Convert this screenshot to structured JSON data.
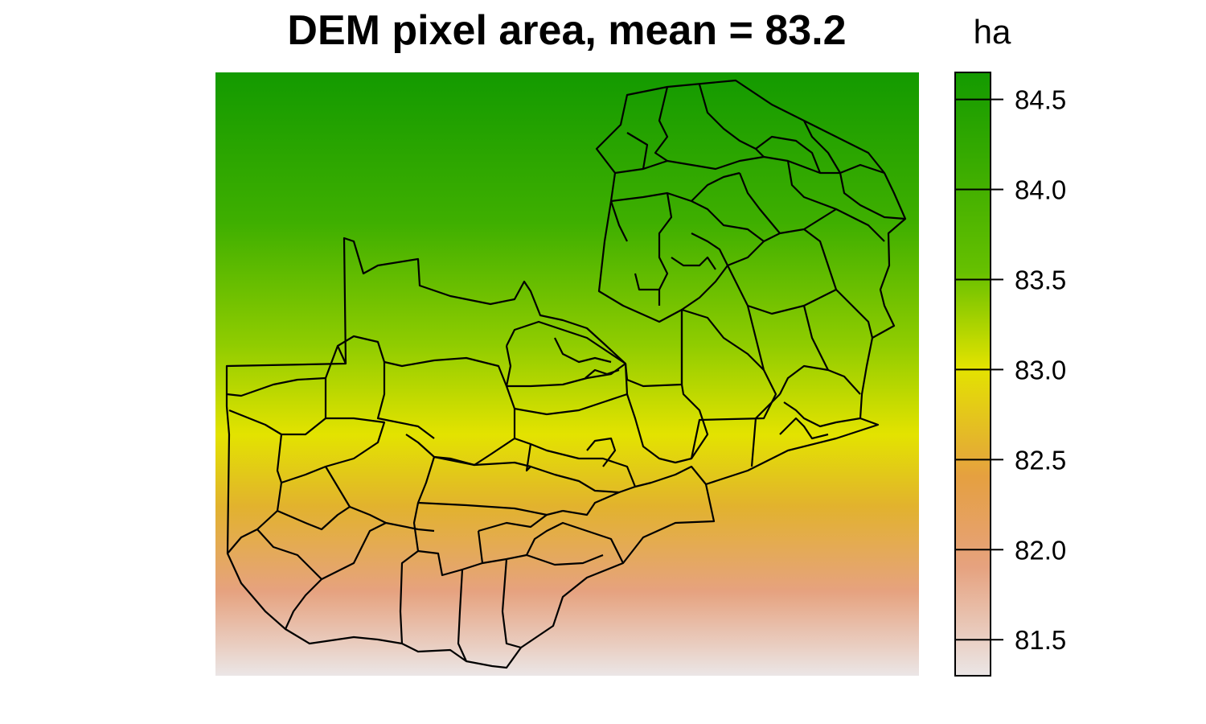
{
  "title": "DEM pixel area, mean = 83.2",
  "legend": {
    "unit_label": "ha",
    "range": [
      81.3,
      84.65
    ],
    "ticks": [
      "81.5",
      "82.0",
      "82.5",
      "83.0",
      "83.5",
      "84.0",
      "84.5"
    ],
    "tick_values": [
      81.5,
      82.0,
      82.5,
      83.0,
      83.5,
      84.0,
      84.5
    ],
    "colors": {
      "high": "#139a00",
      "upper": "#66c000",
      "mid": "#e3e300",
      "lower": "#e5a040",
      "low_mid": "#e6a27f",
      "low": "#ebe6e6"
    }
  },
  "map": {
    "raster_min": 81.3,
    "raster_max": 84.65,
    "boundary_color": "#000000",
    "feature": "district boundaries"
  }
}
